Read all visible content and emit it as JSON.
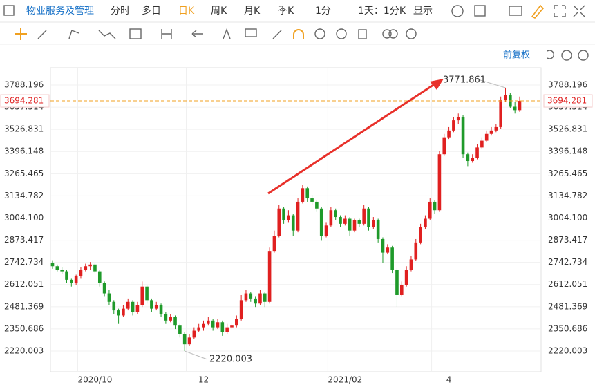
{
  "toolbar": {
    "stock_name": "物业服务及管理",
    "tabs": [
      "分时",
      "多日",
      "日K",
      "周K",
      "月K",
      "季K",
      "1分"
    ],
    "active_tab": 2,
    "period": "1天：1分K",
    "display": "显示"
  },
  "adjust": "前复权",
  "chart_data": {
    "type": "candlestick",
    "ylim": [
      2097.8,
      3890.0
    ],
    "yticks": [
      3788.196,
      3657.514,
      3526.831,
      3396.148,
      3265.465,
      3134.782,
      {
        "value": 3004.1,
        "label": "3004.100"
      },
      2873.417,
      2742.734,
      2612.051,
      2481.369,
      2350.686,
      2220.003
    ],
    "grid": true,
    "up_color": "#e02020",
    "down_color": "#1f9a2a",
    "last_price": 3694.281,
    "high_annotation": 3771.861,
    "low_annotation": 2220.003,
    "categories": [
      null,
      null,
      null,
      null,
      null,
      null,
      null,
      null,
      null,
      "2020/10",
      null,
      null,
      null,
      null,
      null,
      null,
      null,
      null,
      null,
      null,
      null,
      null,
      null,
      null,
      null,
      null,
      null,
      null,
      null,
      null,
      null,
      null,
      "12",
      null,
      null,
      null,
      null,
      null,
      null,
      null,
      null,
      null,
      null,
      null,
      null,
      null,
      null,
      null,
      null,
      null,
      null,
      null,
      null,
      null,
      null,
      null,
      null,
      null,
      null,
      null,
      null,
      null,
      "2021/02",
      null,
      null,
      null,
      null,
      null,
      null,
      null,
      null,
      null,
      null,
      null,
      null,
      null,
      null,
      null,
      null,
      null,
      null,
      null,
      null,
      null,
      "4",
      null,
      null,
      null,
      null,
      null,
      null,
      null,
      null,
      null,
      null,
      null,
      null,
      null,
      null
    ],
    "ohlc": [
      [
        2740,
        2755,
        2705,
        2720
      ],
      [
        2720,
        2730,
        2690,
        2700
      ],
      [
        2700,
        2715,
        2675,
        2690
      ],
      [
        2690,
        2700,
        2620,
        2640
      ],
      [
        2640,
        2650,
        2600,
        2620
      ],
      [
        2620,
        2670,
        2610,
        2660
      ],
      [
        2660,
        2715,
        2650,
        2700
      ],
      [
        2700,
        2735,
        2690,
        2720
      ],
      [
        2720,
        2745,
        2700,
        2730
      ],
      [
        2730,
        2740,
        2680,
        2690
      ],
      [
        2690,
        2700,
        2600,
        2620
      ],
      [
        2620,
        2630,
        2540,
        2560
      ],
      [
        2560,
        2580,
        2490,
        2510
      ],
      [
        2510,
        2520,
        2440,
        2460
      ],
      [
        2460,
        2470,
        2380,
        2430
      ],
      [
        2430,
        2490,
        2420,
        2470
      ],
      [
        2470,
        2530,
        2460,
        2510
      ],
      [
        2510,
        2520,
        2430,
        2450
      ],
      [
        2450,
        2510,
        2440,
        2490
      ],
      [
        2490,
        2630,
        2480,
        2600
      ],
      [
        2600,
        2610,
        2500,
        2520
      ],
      [
        2520,
        2530,
        2450,
        2470
      ],
      [
        2470,
        2510,
        2460,
        2490
      ],
      [
        2490,
        2500,
        2420,
        2440
      ],
      [
        2440,
        2450,
        2380,
        2400
      ],
      [
        2400,
        2440,
        2390,
        2420
      ],
      [
        2420,
        2430,
        2350,
        2370
      ],
      [
        2370,
        2380,
        2300,
        2320
      ],
      [
        2320,
        2330,
        2220.003,
        2260
      ],
      [
        2260,
        2320,
        2250,
        2300
      ],
      [
        2300,
        2360,
        2290,
        2340
      ],
      [
        2340,
        2380,
        2330,
        2360
      ],
      [
        2360,
        2400,
        2340,
        2380
      ],
      [
        2380,
        2420,
        2370,
        2400
      ],
      [
        2400,
        2410,
        2340,
        2360
      ],
      [
        2360,
        2410,
        2350,
        2390
      ],
      [
        2390,
        2400,
        2310,
        2330
      ],
      [
        2330,
        2380,
        2320,
        2360
      ],
      [
        2360,
        2390,
        2350,
        2370
      ],
      [
        2370,
        2430,
        2360,
        2410
      ],
      [
        2410,
        2550,
        2400,
        2520
      ],
      [
        2520,
        2580,
        2510,
        2560
      ],
      [
        2560,
        2570,
        2510,
        2530
      ],
      [
        2530,
        2540,
        2480,
        2500
      ],
      [
        2500,
        2580,
        2490,
        2560
      ],
      [
        2560,
        2570,
        2480,
        2510
      ],
      [
        2510,
        2830,
        2500,
        2810
      ],
      [
        2810,
        2930,
        2800,
        2900
      ],
      [
        2900,
        3080,
        2890,
        3060
      ],
      [
        3060,
        3070,
        2970,
        2990
      ],
      [
        2990,
        3050,
        2980,
        3020
      ],
      [
        3020,
        3030,
        2900,
        2930
      ],
      [
        2930,
        3120,
        2920,
        3100
      ],
      [
        3100,
        3200,
        3090,
        3180
      ],
      [
        3180,
        3190,
        3100,
        3120
      ],
      [
        3120,
        3140,
        3080,
        3100
      ],
      [
        3100,
        3110,
        3040,
        3060
      ],
      [
        3060,
        3070,
        2870,
        2900
      ],
      [
        2900,
        2980,
        2890,
        2960
      ],
      [
        2960,
        3070,
        2950,
        3050
      ],
      [
        3050,
        3060,
        2990,
        3010
      ],
      [
        3010,
        3020,
        2950,
        2970
      ],
      [
        2970,
        3020,
        2960,
        3000
      ],
      [
        3000,
        3010,
        2900,
        2930
      ],
      [
        2930,
        3000,
        2920,
        2990
      ],
      [
        2990,
        3000,
        2950,
        2970
      ],
      [
        2970,
        3080,
        2960,
        3060
      ],
      [
        3060,
        3070,
        2930,
        2950
      ],
      [
        2950,
        3010,
        2940,
        2990
      ],
      [
        2990,
        3000,
        2860,
        2880
      ],
      [
        2880,
        2890,
        2740,
        2800
      ],
      [
        2800,
        2850,
        2790,
        2830
      ],
      [
        2830,
        2840,
        2680,
        2700
      ],
      [
        2700,
        2710,
        2480,
        2550
      ],
      [
        2550,
        2630,
        2540,
        2610
      ],
      [
        2610,
        2720,
        2600,
        2700
      ],
      [
        2700,
        2780,
        2690,
        2760
      ],
      [
        2760,
        2880,
        2750,
        2860
      ],
      [
        2860,
        2970,
        2850,
        2950
      ],
      [
        2950,
        3020,
        2940,
        3000
      ],
      [
        3000,
        3120,
        2990,
        3100
      ],
      [
        3100,
        3110,
        3030,
        3050
      ],
      [
        3050,
        3400,
        3040,
        3380
      ],
      [
        3380,
        3500,
        3370,
        3480
      ],
      [
        3480,
        3540,
        3470,
        3520
      ],
      [
        3520,
        3600,
        3510,
        3580
      ],
      [
        3580,
        3620,
        3560,
        3600
      ],
      [
        3600,
        3610,
        3360,
        3380
      ],
      [
        3380,
        3390,
        3310,
        3340
      ],
      [
        3340,
        3380,
        3330,
        3360
      ],
      [
        3360,
        3440,
        3350,
        3420
      ],
      [
        3420,
        3480,
        3410,
        3460
      ],
      [
        3460,
        3520,
        3450,
        3500
      ],
      [
        3500,
        3540,
        3490,
        3520
      ],
      [
        3520,
        3560,
        3510,
        3540
      ],
      [
        3540,
        3720,
        3530,
        3700
      ],
      [
        3700,
        3771.861,
        3690,
        3730
      ],
      [
        3730,
        3740,
        3650,
        3660
      ],
      [
        3660,
        3690,
        3620,
        3640
      ],
      [
        3640,
        3720,
        3630,
        3694.281
      ]
    ]
  }
}
